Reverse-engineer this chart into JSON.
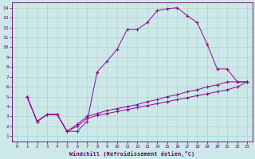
{
  "xlabel": "Windchill (Refroidissement éolien,°C)",
  "background_color": "#cce8e8",
  "line_color": "#990099",
  "grid_color": "#aacccc",
  "spine_color": "#660066",
  "text_color": "#660066",
  "xlim": [
    -0.5,
    23.5
  ],
  "ylim": [
    0.5,
    14.5
  ],
  "xticks": [
    0,
    1,
    2,
    3,
    4,
    5,
    6,
    7,
    8,
    9,
    10,
    11,
    12,
    13,
    14,
    15,
    16,
    17,
    18,
    19,
    20,
    21,
    22,
    23
  ],
  "yticks": [
    1,
    2,
    3,
    4,
    5,
    6,
    7,
    8,
    9,
    10,
    11,
    12,
    13,
    14
  ],
  "curve1_x": [
    1,
    2,
    3,
    4,
    5,
    6,
    7,
    8,
    9,
    10,
    11,
    12,
    13,
    14,
    15,
    16,
    17,
    18,
    19,
    20,
    21,
    22,
    23
  ],
  "curve1_y": [
    5.0,
    2.5,
    3.2,
    3.2,
    1.5,
    1.5,
    2.5,
    7.5,
    8.6,
    9.8,
    11.8,
    11.8,
    12.5,
    13.7,
    13.9,
    14.0,
    13.2,
    12.5,
    10.3,
    7.8,
    7.8,
    6.5,
    6.5
  ],
  "curve2_x": [
    1,
    2,
    3,
    4,
    5,
    6,
    7,
    8,
    9,
    10,
    11,
    12,
    13,
    14,
    15,
    16,
    17,
    18,
    19,
    20,
    21,
    22,
    23
  ],
  "curve2_y": [
    5.0,
    2.5,
    3.2,
    3.2,
    1.5,
    2.2,
    3.0,
    3.3,
    3.6,
    3.8,
    4.0,
    4.2,
    4.5,
    4.7,
    5.0,
    5.2,
    5.5,
    5.7,
    6.0,
    6.2,
    6.5,
    6.5,
    6.5
  ],
  "curve3_x": [
    1,
    2,
    3,
    4,
    5,
    6,
    7,
    8,
    9,
    10,
    11,
    12,
    13,
    14,
    15,
    16,
    17,
    18,
    19,
    20,
    21,
    22,
    23
  ],
  "curve3_y": [
    5.0,
    2.5,
    3.2,
    3.2,
    1.5,
    2.0,
    2.8,
    3.1,
    3.3,
    3.5,
    3.7,
    3.9,
    4.1,
    4.3,
    4.5,
    4.7,
    4.9,
    5.1,
    5.3,
    5.5,
    5.7,
    6.0,
    6.5
  ]
}
